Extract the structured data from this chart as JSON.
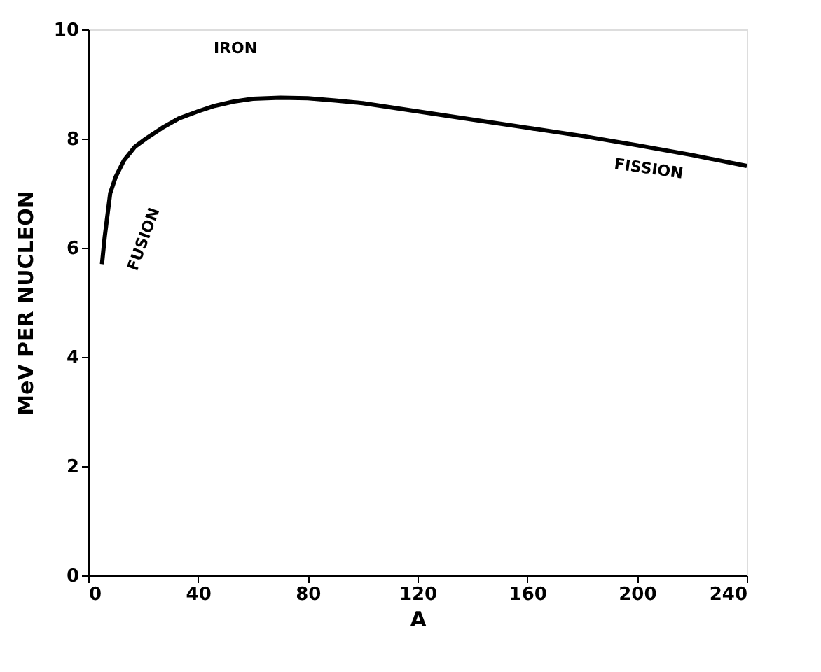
{
  "chart_data": {
    "type": "line",
    "xlabel": "A",
    "ylabel": "MeV PER NUCLEON",
    "x": [
      5,
      6,
      8,
      10,
      13,
      17,
      21,
      27,
      33,
      40,
      46,
      53,
      60,
      70,
      80,
      90,
      100,
      120,
      140,
      160,
      180,
      200,
      220,
      240
    ],
    "series": [
      {
        "color": "#000000",
        "values": [
          5.7,
          6.2,
          7.0,
          7.3,
          7.6,
          7.85,
          8.0,
          8.2,
          8.37,
          8.5,
          8.6,
          8.68,
          8.73,
          8.75,
          8.74,
          8.7,
          8.65,
          8.5,
          8.35,
          8.2,
          8.05,
          7.88,
          7.7,
          7.5
        ]
      }
    ],
    "xlim": [
      0,
      240
    ],
    "ylim": [
      0,
      10
    ],
    "xticks": [
      0,
      40,
      80,
      120,
      160,
      200,
      240
    ],
    "yticks": [
      0,
      2,
      4,
      6,
      8,
      10
    ],
    "grid": false,
    "marker": "none",
    "line_style": "solid",
    "annotations": [
      "IRON",
      "FUSION",
      "FISSION"
    ]
  }
}
